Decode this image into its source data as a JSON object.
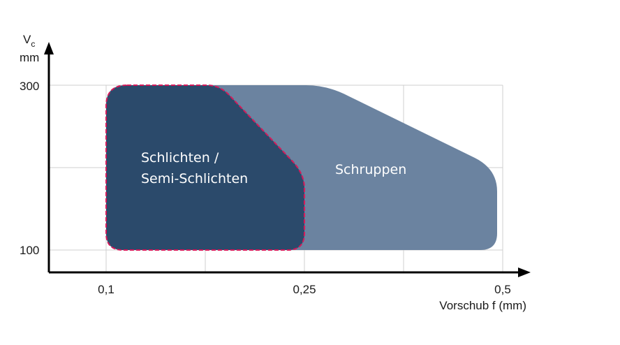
{
  "chart_data": {
    "type": "area",
    "xlabel": "Vorschub f (mm)",
    "ylabel_main": "V",
    "ylabel_sub": "c",
    "ylabel_unit": "mm",
    "x_ticks": [
      "0,1",
      "0,25",
      "0,5"
    ],
    "y_ticks": [
      "100",
      "300"
    ],
    "grid": true,
    "regions": [
      {
        "name": "Schrupen-region",
        "label_lines": [
          "Schruppen"
        ],
        "color": "#6b83a0",
        "x_range": [
          "0,1",
          "0,5"
        ],
        "y_range": [
          "100",
          "300"
        ]
      },
      {
        "name": "Schlichten-region",
        "label_lines": [
          "Schlichten /",
          "Semi-Schlichten"
        ],
        "color": "#2b4a6b",
        "border_color": "#d6195a",
        "border_style": "dashed",
        "x_range": [
          "0,1",
          "0,25"
        ],
        "y_range": [
          "100",
          "300"
        ]
      }
    ]
  }
}
